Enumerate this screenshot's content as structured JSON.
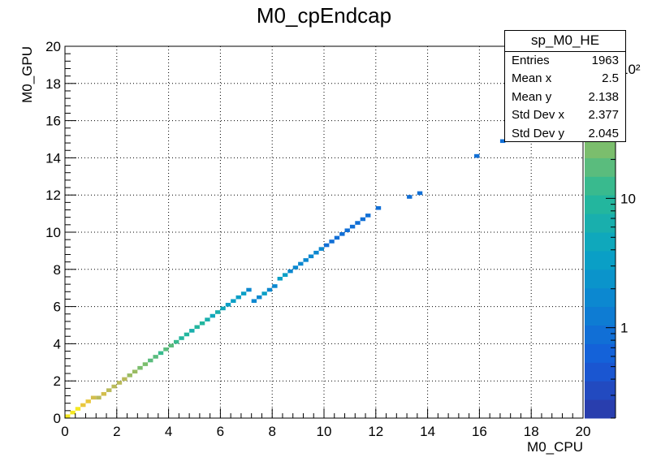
{
  "chart_data": {
    "type": "heatmap",
    "title": "M0_cpEndcap",
    "xlabel": "M0_CPU",
    "ylabel": "M0_GPU",
    "xlim": [
      0,
      20
    ],
    "ylim": [
      0,
      20
    ],
    "x_ticks": [
      "0",
      "2",
      "4",
      "6",
      "8",
      "10",
      "12",
      "14",
      "16",
      "18",
      "20"
    ],
    "y_ticks": [
      "0",
      "2",
      "4",
      "6",
      "8",
      "10",
      "12",
      "14",
      "16",
      "18",
      "20"
    ],
    "grid": true,
    "colorbar": {
      "scale": "log",
      "min": 0.2,
      "max": 150,
      "labels": [
        "1",
        "10",
        "10²"
      ]
    },
    "bin_width": 0.2,
    "cells": [
      [
        0.0,
        0.0,
        150
      ],
      [
        0.2,
        0.2,
        130
      ],
      [
        0.4,
        0.4,
        110
      ],
      [
        0.6,
        0.6,
        100
      ],
      [
        0.8,
        0.8,
        90
      ],
      [
        1.0,
        1.0,
        70
      ],
      [
        1.2,
        1.0,
        45
      ],
      [
        1.4,
        1.2,
        60
      ],
      [
        1.6,
        1.4,
        55
      ],
      [
        1.8,
        1.6,
        50
      ],
      [
        2.0,
        1.8,
        55
      ],
      [
        2.2,
        2.0,
        45
      ],
      [
        2.4,
        2.2,
        30
      ],
      [
        2.6,
        2.4,
        30
      ],
      [
        2.8,
        2.6,
        25
      ],
      [
        3.0,
        2.8,
        25
      ],
      [
        3.2,
        3.0,
        20
      ],
      [
        3.4,
        3.2,
        18
      ],
      [
        3.6,
        3.4,
        12
      ],
      [
        3.8,
        3.6,
        15
      ],
      [
        4.0,
        3.8,
        15
      ],
      [
        4.2,
        4.0,
        12
      ],
      [
        4.4,
        4.2,
        10
      ],
      [
        4.6,
        4.4,
        10
      ],
      [
        4.8,
        4.6,
        6
      ],
      [
        5.0,
        4.8,
        10
      ],
      [
        5.2,
        5.0,
        8
      ],
      [
        5.4,
        5.2,
        6
      ],
      [
        5.6,
        5.4,
        4
      ],
      [
        5.8,
        5.6,
        6
      ],
      [
        6.0,
        5.8,
        4
      ],
      [
        6.2,
        6.0,
        3
      ],
      [
        6.4,
        6.2,
        3
      ],
      [
        6.6,
        6.4,
        3
      ],
      [
        6.8,
        6.6,
        3
      ],
      [
        7.0,
        6.8,
        2
      ],
      [
        7.2,
        6.2,
        2
      ],
      [
        7.4,
        6.4,
        2
      ],
      [
        7.6,
        6.6,
        3
      ],
      [
        7.8,
        6.8,
        2
      ],
      [
        8.0,
        7.0,
        2
      ],
      [
        8.2,
        7.4,
        3
      ],
      [
        8.4,
        7.6,
        3
      ],
      [
        8.6,
        7.8,
        2
      ],
      [
        8.8,
        8.0,
        2
      ],
      [
        9.0,
        8.2,
        2
      ],
      [
        9.2,
        8.4,
        2
      ],
      [
        9.4,
        8.6,
        2
      ],
      [
        9.6,
        8.8,
        2
      ],
      [
        9.8,
        9.0,
        2
      ],
      [
        10.0,
        9.2,
        1
      ],
      [
        10.2,
        9.4,
        1
      ],
      [
        10.4,
        9.6,
        1
      ],
      [
        10.6,
        9.8,
        1
      ],
      [
        10.8,
        10.0,
        1
      ],
      [
        11.0,
        10.2,
        1
      ],
      [
        11.2,
        10.4,
        1
      ],
      [
        11.4,
        10.6,
        1
      ],
      [
        11.6,
        10.8,
        1
      ],
      [
        12.0,
        11.2,
        1
      ],
      [
        13.2,
        11.8,
        1
      ],
      [
        13.6,
        12.0,
        1
      ],
      [
        15.8,
        14.0,
        1
      ],
      [
        16.8,
        14.8,
        1
      ]
    ]
  },
  "stats": {
    "name": "sp_M0_HE",
    "rows": [
      {
        "label": "Entries",
        "value": "1963"
      },
      {
        "label": "Mean x",
        "value": "2.5"
      },
      {
        "label": "Mean y",
        "value": "2.138"
      },
      {
        "label": "Std Dev x",
        "value": "2.377"
      },
      {
        "label": "Std Dev y",
        "value": "2.045"
      }
    ]
  }
}
